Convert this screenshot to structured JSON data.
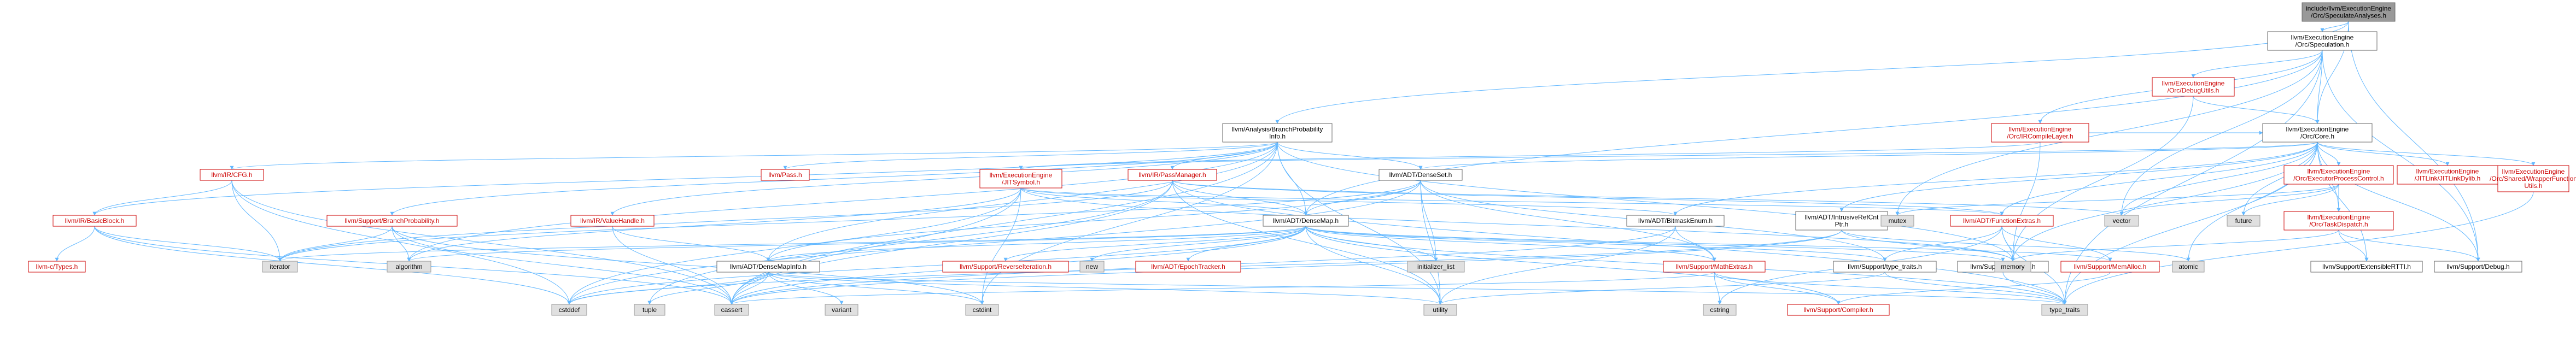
{
  "title": "include/llvm/ExecutionEngine/Orc/SpeculateAnalyses.h",
  "colors": {
    "edge": "#63b8ff",
    "focus_fill": "#999999",
    "focus_stroke": "#666666",
    "node_fill": "#ffffff",
    "node_stroke": "#666666",
    "missing_fill": "#e0e0e0",
    "missing_stroke": "#999999",
    "red_text": "#cc0000"
  },
  "nodes": [
    {
      "id": "root",
      "lines": [
        "include/llvm/ExecutionEngine",
        "/Orc/SpeculateAnalyses.h"
      ],
      "style": "focus"
    },
    {
      "id": "spec",
      "lines": [
        "llvm/ExecutionEngine",
        "/Orc/Speculation.h"
      ],
      "style": "normal"
    },
    {
      "id": "bpi",
      "lines": [
        "llvm/Analysis/BranchProbability",
        "Info.h"
      ],
      "style": "normal"
    },
    {
      "id": "debugutils",
      "lines": [
        "llvm/ExecutionEngine",
        "/Orc/DebugUtils.h"
      ],
      "style": "red"
    },
    {
      "id": "irlayer",
      "lines": [
        "llvm/ExecutionEngine",
        "/Orc/IRCompileLayer.h"
      ],
      "style": "red"
    },
    {
      "id": "core",
      "lines": [
        "llvm/ExecutionEngine",
        "/Orc/Core.h"
      ],
      "style": "normal"
    },
    {
      "id": "cfg",
      "lines": [
        "llvm/IR/CFG.h"
      ],
      "style": "red"
    },
    {
      "id": "pass",
      "lines": [
        "llvm/Pass.h"
      ],
      "style": "red"
    },
    {
      "id": "jitsym",
      "lines": [
        "llvm/ExecutionEngine",
        "/JITSymbol.h"
      ],
      "style": "red"
    },
    {
      "id": "passmgr",
      "lines": [
        "llvm/IR/PassManager.h"
      ],
      "style": "red"
    },
    {
      "id": "denseset",
      "lines": [
        "llvm/ADT/DenseSet.h"
      ],
      "style": "normal"
    },
    {
      "id": "epc",
      "lines": [
        "llvm/ExecutionEngine",
        "/Orc/ExecutorProcessControl.h"
      ],
      "style": "red"
    },
    {
      "id": "jitlink",
      "lines": [
        "llvm/ExecutionEngine",
        "/JITLink/JITLinkDylib.h"
      ],
      "style": "red"
    },
    {
      "id": "wrapper",
      "lines": [
        "llvm/ExecutionEngine",
        "/Orc/Shared/WrapperFunction",
        "Utils.h"
      ],
      "style": "red"
    },
    {
      "id": "basicblock",
      "lines": [
        "llvm/IR/BasicBlock.h"
      ],
      "style": "red"
    },
    {
      "id": "bprob",
      "lines": [
        "llvm/Support/BranchProbability.h"
      ],
      "style": "red"
    },
    {
      "id": "valuehandle",
      "lines": [
        "llvm/IR/ValueHandle.h"
      ],
      "style": "red"
    },
    {
      "id": "densemap",
      "lines": [
        "llvm/ADT/DenseMap.h"
      ],
      "style": "normal"
    },
    {
      "id": "bitmask",
      "lines": [
        "llvm/ADT/BitmaskEnum.h"
      ],
      "style": "normal"
    },
    {
      "id": "intrusive",
      "lines": [
        "llvm/ADT/IntrusiveRefCnt",
        "Ptr.h"
      ],
      "style": "normal"
    },
    {
      "id": "fnextras",
      "lines": [
        "llvm/ADT/FunctionExtras.h"
      ],
      "style": "red"
    },
    {
      "id": "taskdispatch",
      "lines": [
        "llvm/ExecutionEngine",
        "/Orc/TaskDispatch.h"
      ],
      "style": "red"
    },
    {
      "id": "ctypes",
      "lines": [
        "llvm-c/Types.h"
      ],
      "style": "red"
    },
    {
      "id": "densemapinfo",
      "lines": [
        "llvm/ADT/DenseMapInfo.h"
      ],
      "style": "normal"
    },
    {
      "id": "reverseiter",
      "lines": [
        "llvm/Support/ReverseIteration.h"
      ],
      "style": "red"
    },
    {
      "id": "epochtracker",
      "lines": [
        "llvm/ADT/EpochTracker.h"
      ],
      "style": "red"
    },
    {
      "id": "mathextras",
      "lines": [
        "llvm/Support/MathExtras.h"
      ],
      "style": "red"
    },
    {
      "id": "typetraits_h",
      "lines": [
        "llvm/Support/type_traits.h"
      ],
      "style": "normal"
    },
    {
      "id": "alignof",
      "lines": [
        "llvm/Support/AlignOf.h"
      ],
      "style": "normal"
    },
    {
      "id": "memalloc",
      "lines": [
        "llvm/Support/MemAlloc.h"
      ],
      "style": "red"
    },
    {
      "id": "extrtti",
      "lines": [
        "llvm/Support/ExtensibleRTTI.h"
      ],
      "style": "normal"
    },
    {
      "id": "debug_h",
      "lines": [
        "llvm/Support/Debug.h"
      ],
      "style": "normal"
    },
    {
      "id": "compiler",
      "lines": [
        "llvm/Support/Compiler.h"
      ],
      "style": "red"
    },
    {
      "id": "mutex",
      "lines": [
        "mutex"
      ],
      "style": "missing"
    },
    {
      "id": "vector",
      "lines": [
        "vector"
      ],
      "style": "missing"
    },
    {
      "id": "future",
      "lines": [
        "future"
      ],
      "style": "missing"
    },
    {
      "id": "memory",
      "lines": [
        "memory"
      ],
      "style": "missing"
    },
    {
      "id": "atomic",
      "lines": [
        "atomic"
      ],
      "style": "missing"
    },
    {
      "id": "algorithm",
      "lines": [
        "algorithm"
      ],
      "style": "missing"
    },
    {
      "id": "iterator",
      "lines": [
        "iterator"
      ],
      "style": "missing"
    },
    {
      "id": "initlist",
      "lines": [
        "initializer_list"
      ],
      "style": "missing"
    },
    {
      "id": "new",
      "lines": [
        "new"
      ],
      "style": "missing"
    },
    {
      "id": "cstddef",
      "lines": [
        "cstddef"
      ],
      "style": "missing"
    },
    {
      "id": "tuple",
      "lines": [
        "tuple"
      ],
      "style": "missing"
    },
    {
      "id": "cassert",
      "lines": [
        "cassert"
      ],
      "style": "missing"
    },
    {
      "id": "variant",
      "lines": [
        "variant"
      ],
      "style": "missing"
    },
    {
      "id": "cstdint",
      "lines": [
        "cstdint"
      ],
      "style": "missing"
    },
    {
      "id": "utility",
      "lines": [
        "utility"
      ],
      "style": "missing"
    },
    {
      "id": "cstring",
      "lines": [
        "cstring"
      ],
      "style": "missing"
    },
    {
      "id": "type_traits",
      "lines": [
        "type_traits"
      ],
      "style": "missing"
    }
  ],
  "edges": [
    [
      "root",
      "spec"
    ],
    [
      "root",
      "bpi"
    ],
    [
      "root",
      "core"
    ],
    [
      "root",
      "debug_h"
    ],
    [
      "spec",
      "debugutils"
    ],
    [
      "spec",
      "irlayer"
    ],
    [
      "spec",
      "core"
    ],
    [
      "spec",
      "densemap"
    ],
    [
      "spec",
      "mutex"
    ],
    [
      "spec",
      "type_traits"
    ],
    [
      "spec",
      "vector"
    ],
    [
      "spec",
      "debug_h"
    ],
    [
      "debugutils",
      "core"
    ],
    [
      "debugutils",
      "memory"
    ],
    [
      "irlayer",
      "jitsym"
    ],
    [
      "irlayer",
      "core"
    ],
    [
      "irlayer",
      "memory"
    ],
    [
      "bpi",
      "densemap"
    ],
    [
      "bpi",
      "densemapinfo"
    ],
    [
      "bpi",
      "cfg"
    ],
    [
      "bpi",
      "basicblock"
    ],
    [
      "bpi",
      "pass"
    ],
    [
      "bpi",
      "passmgr"
    ],
    [
      "bpi",
      "bprob"
    ],
    [
      "bpi",
      "valuehandle"
    ],
    [
      "bpi",
      "denseset"
    ],
    [
      "bpi",
      "algorithm"
    ],
    [
      "bpi",
      "cassert"
    ],
    [
      "bpi",
      "cstdint"
    ],
    [
      "bpi",
      "memory"
    ],
    [
      "bpi",
      "utility"
    ],
    [
      "core",
      "jitsym"
    ],
    [
      "core",
      "bitmask"
    ],
    [
      "core",
      "denseset"
    ],
    [
      "core",
      "fnextras"
    ],
    [
      "core",
      "intrusive"
    ],
    [
      "core",
      "epc"
    ],
    [
      "core",
      "jitlink"
    ],
    [
      "core",
      "taskdispatch"
    ],
    [
      "core",
      "wrapper"
    ],
    [
      "core",
      "extrtti"
    ],
    [
      "core",
      "debug_h"
    ],
    [
      "core",
      "atomic"
    ],
    [
      "core",
      "future"
    ],
    [
      "core",
      "memory"
    ],
    [
      "core",
      "vector"
    ],
    [
      "core",
      "type_traits"
    ],
    [
      "cfg",
      "basicblock"
    ],
    [
      "cfg",
      "iterator"
    ],
    [
      "cfg",
      "cassert"
    ],
    [
      "cfg",
      "cstddef"
    ],
    [
      "basicblock",
      "ctypes"
    ],
    [
      "basicblock",
      "iterator"
    ],
    [
      "basicblock",
      "cassert"
    ],
    [
      "basicblock",
      "cstddef"
    ],
    [
      "jitsym",
      "bitmask"
    ],
    [
      "jitsym",
      "densemap"
    ],
    [
      "jitsym",
      "fnextras"
    ],
    [
      "jitsym",
      "algorithm"
    ],
    [
      "jitsym",
      "cassert"
    ],
    [
      "jitsym",
      "cstddef"
    ],
    [
      "jitsym",
      "cstdint"
    ],
    [
      "jitsym",
      "memory"
    ],
    [
      "passmgr",
      "densemap"
    ],
    [
      "passmgr",
      "fnextras"
    ],
    [
      "passmgr",
      "tuple"
    ],
    [
      "passmgr",
      "type_traits"
    ],
    [
      "passmgr",
      "utility"
    ],
    [
      "passmgr",
      "vector"
    ],
    [
      "passmgr",
      "cassert"
    ],
    [
      "passmgr",
      "iterator"
    ],
    [
      "bprob",
      "algorithm"
    ],
    [
      "bprob",
      "cassert"
    ],
    [
      "bprob",
      "iterator"
    ],
    [
      "bprob",
      "cstdint"
    ],
    [
      "valuehandle",
      "densemapinfo"
    ],
    [
      "valuehandle",
      "cassert"
    ],
    [
      "denseset",
      "densemap"
    ],
    [
      "denseset",
      "densemapinfo"
    ],
    [
      "denseset",
      "mathextras"
    ],
    [
      "denseset",
      "typetraits_h"
    ],
    [
      "denseset",
      "initlist"
    ],
    [
      "denseset",
      "iterator"
    ],
    [
      "denseset",
      "cstddef"
    ],
    [
      "denseset",
      "utility"
    ],
    [
      "densemap",
      "densemapinfo"
    ],
    [
      "densemap",
      "epochtracker"
    ],
    [
      "densemap",
      "reverseiter"
    ],
    [
      "densemap",
      "mathextras"
    ],
    [
      "densemap",
      "alignof"
    ],
    [
      "densemap",
      "memalloc"
    ],
    [
      "densemap",
      "typetraits_h"
    ],
    [
      "densemap",
      "compiler"
    ],
    [
      "densemap",
      "algorithm"
    ],
    [
      "densemap",
      "cassert"
    ],
    [
      "densemap",
      "cstddef"
    ],
    [
      "densemap",
      "initlist"
    ],
    [
      "densemap",
      "iterator"
    ],
    [
      "densemap",
      "new"
    ],
    [
      "densemap",
      "type_traits"
    ],
    [
      "densemap",
      "utility"
    ],
    [
      "densemapinfo",
      "cassert"
    ],
    [
      "densemapinfo",
      "cstddef"
    ],
    [
      "densemapinfo",
      "cstdint"
    ],
    [
      "densemapinfo",
      "tuple"
    ],
    [
      "densemapinfo",
      "type_traits"
    ],
    [
      "densemapinfo",
      "utility"
    ],
    [
      "densemapinfo",
      "variant"
    ],
    [
      "bitmask",
      "mathextras"
    ],
    [
      "bitmask",
      "utility"
    ],
    [
      "bitmask",
      "cassert"
    ],
    [
      "intrusive",
      "atomic"
    ],
    [
      "intrusive",
      "cassert"
    ],
    [
      "intrusive",
      "cstddef"
    ],
    [
      "intrusive",
      "memory"
    ],
    [
      "fnextras",
      "memalloc"
    ],
    [
      "fnextras",
      "typetraits_h"
    ],
    [
      "fnextras",
      "cstring"
    ],
    [
      "fnextras",
      "memory"
    ],
    [
      "fnextras",
      "type_traits"
    ],
    [
      "mathextras",
      "compiler"
    ],
    [
      "mathextras",
      "cassert"
    ],
    [
      "mathextras",
      "cstring"
    ],
    [
      "mathextras",
      "type_traits"
    ],
    [
      "typetraits_h",
      "utility"
    ],
    [
      "typetraits_h",
      "type_traits"
    ],
    [
      "alignof",
      "type_traits"
    ],
    [
      "memalloc",
      "compiler"
    ],
    [
      "epc",
      "mutex"
    ],
    [
      "epc",
      "future"
    ],
    [
      "epc",
      "vector"
    ],
    [
      "epc",
      "taskdispatch"
    ],
    [
      "taskdispatch",
      "extrtti"
    ],
    [
      "taskdispatch",
      "debug_h"
    ],
    [
      "taskdispatch",
      "memory"
    ],
    [
      "wrapper",
      "type_traits"
    ]
  ]
}
